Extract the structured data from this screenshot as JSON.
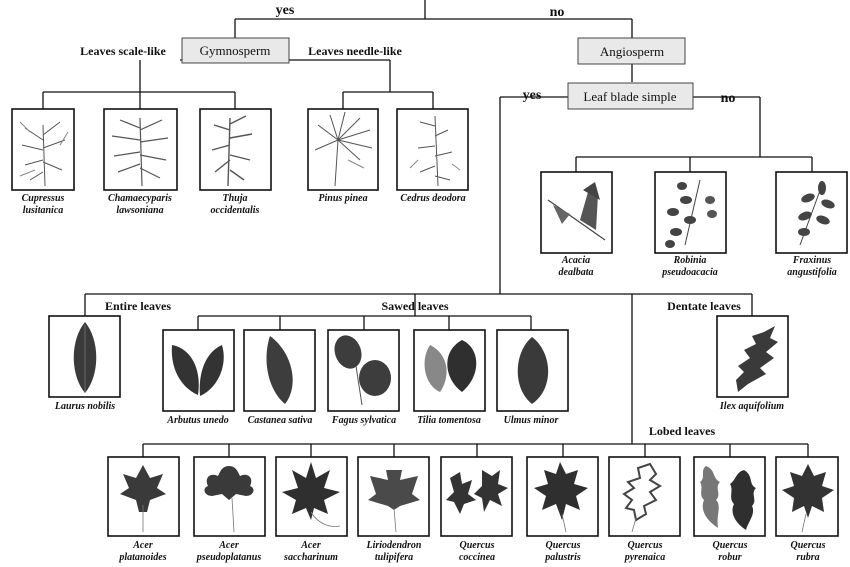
{
  "branches": {
    "yes": "yes",
    "no": "no"
  },
  "nodes": {
    "gymnosperm": "Gymnosperm",
    "angiosperm": "Angiosperm",
    "leaf_blade_simple": "Leaf blade simple"
  },
  "edge_labels": {
    "scale_like": "Leaves scale-like",
    "needle_like": "Leaves needle-like",
    "entire": "Entire  leaves",
    "sawed": "Sawed leaves",
    "dentate": "Dentate leaves",
    "lobed": "Lobed leaves"
  },
  "species": {
    "cupressus": [
      "Cupressus",
      "lusitanica"
    ],
    "chamaecyparis": [
      "Chamaecyparis",
      "lawsoniana"
    ],
    "thuja": [
      "Thuja",
      "occidentalis"
    ],
    "pinus": [
      "Pinus pinea"
    ],
    "cedrus": [
      "Cedrus deodora"
    ],
    "acacia": [
      "Acacia",
      "dealbata"
    ],
    "robinia": [
      "Robinia",
      "pseudoacacia"
    ],
    "fraxinus": [
      "Fraxinus",
      "angustifolia"
    ],
    "laurus": [
      "Laurus nobilis"
    ],
    "arbutus": [
      "Arbutus unedo"
    ],
    "castanea": [
      "Castanea sativa"
    ],
    "fagus": [
      "Fagus sylvatica"
    ],
    "tilia": [
      "Tilia tomentosa"
    ],
    "ulmus": [
      "Ulmus minor"
    ],
    "ilex": [
      "Ilex aquifolium"
    ],
    "acer_plat": [
      "Acer",
      "platanoides"
    ],
    "acer_pseudo": [
      "Acer",
      "pseudoplatanus"
    ],
    "acer_sacch": [
      "Acer",
      "saccharinum"
    ],
    "liriodendron": [
      "Liriodendron",
      "tulipifera"
    ],
    "q_coccinea": [
      "Quercus",
      "coccinea"
    ],
    "q_palustris": [
      "Quercus",
      "palustris"
    ],
    "q_pyrenaica": [
      "Quercus",
      "pyrenaica"
    ],
    "q_robur": [
      "Quercus",
      "robur"
    ],
    "q_rubra": [
      "Quercus",
      "rubra"
    ]
  }
}
